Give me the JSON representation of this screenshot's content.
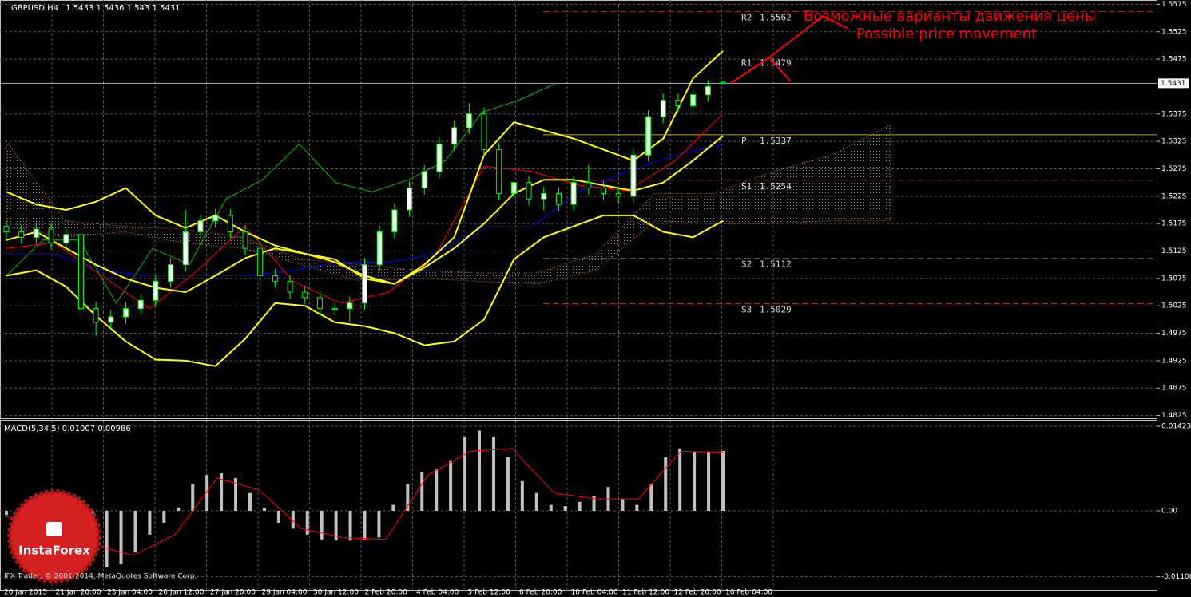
{
  "chart_data": [
    {
      "type": "candlestick",
      "symbol": "GBPUSD,H4",
      "categories": [
        "20 Jan 2015",
        "21 Jan 20:00",
        "23 Jan 04:00",
        "26 Jan 12:00",
        "27 Jan 20:00",
        "29 Jan 04:00",
        "30 Jan 12:00",
        "2 Feb 20:00",
        "4 Feb 04:00",
        "5 Feb 12:00",
        "6 Feb 20:00",
        "10 Feb 04:00",
        "11 Feb 12:00",
        "12 Feb 20:00",
        "16 Feb 04:00"
      ],
      "open": [
        1.517,
        1.516,
        1.515,
        1.5165,
        1.514,
        1.5155,
        1.502,
        1.4995,
        1.5005,
        1.502,
        1.5035,
        1.507,
        1.51,
        1.516,
        1.518,
        1.519,
        1.516,
        1.513,
        1.508,
        1.507,
        1.505,
        1.504,
        1.502,
        1.502,
        1.503,
        1.51,
        1.516,
        1.52,
        1.524,
        1.527,
        1.532,
        1.535,
        1.5375,
        1.531,
        1.523,
        1.525,
        1.522,
        1.523,
        1.521,
        1.525,
        1.524,
        1.523,
        1.5225,
        1.53,
        1.537,
        1.54,
        1.539,
        1.541,
        1.5433
      ],
      "high": [
        1.5182,
        1.5172,
        1.5177,
        1.5177,
        1.5167,
        1.5167,
        1.5032,
        1.5017,
        1.5032,
        1.5047,
        1.5082,
        1.5112,
        1.52,
        1.5192,
        1.5202,
        1.5202,
        1.5172,
        1.5142,
        1.5092,
        1.5082,
        1.5062,
        1.5052,
        1.5032,
        1.5042,
        1.5112,
        1.5172,
        1.5212,
        1.5252,
        1.5282,
        1.5332,
        1.5362,
        1.5395,
        1.5387,
        1.5322,
        1.5262,
        1.5262,
        1.5242,
        1.5242,
        1.5262,
        1.5282,
        1.5252,
        1.5242,
        1.5312,
        1.5382,
        1.5412,
        1.5412,
        1.5422,
        1.5437,
        1.5436
      ],
      "low": [
        1.5148,
        1.5138,
        1.5138,
        1.5128,
        1.5128,
        1.5008,
        1.497,
        1.4983,
        1.4993,
        1.5008,
        1.5023,
        1.5058,
        1.5088,
        1.5148,
        1.5168,
        1.5148,
        1.5118,
        1.505,
        1.5058,
        1.5038,
        1.5028,
        1.5008,
        1.5008,
        1.4995,
        1.5018,
        1.5088,
        1.5148,
        1.5188,
        1.5228,
        1.5258,
        1.5308,
        1.5338,
        1.5298,
        1.5218,
        1.5218,
        1.5208,
        1.52,
        1.5198,
        1.5198,
        1.5228,
        1.5218,
        1.5213,
        1.5213,
        1.5288,
        1.5358,
        1.5378,
        1.5378,
        1.5398,
        1.543
      ],
      "close": [
        1.516,
        1.515,
        1.5165,
        1.514,
        1.5155,
        1.502,
        1.4995,
        1.5005,
        1.502,
        1.5035,
        1.507,
        1.51,
        1.516,
        1.518,
        1.519,
        1.516,
        1.513,
        1.508,
        1.507,
        1.505,
        1.504,
        1.502,
        1.502,
        1.503,
        1.51,
        1.516,
        1.52,
        1.524,
        1.527,
        1.532,
        1.535,
        1.5375,
        1.531,
        1.523,
        1.525,
        1.522,
        1.523,
        1.521,
        1.525,
        1.524,
        1.523,
        1.5225,
        1.53,
        1.537,
        1.54,
        1.539,
        1.541,
        1.5425,
        1.5431
      ],
      "candle_color": "#00ff00",
      "bull_fill": "#ffffff",
      "bear_fill": "#000000",
      "bands": [
        {
          "color": "#ffff00",
          "values": [
            1.5233,
            1.521,
            1.52,
            1.5215,
            1.524,
            1.519,
            1.5167,
            1.519,
            1.516,
            1.5135,
            1.512,
            1.5105,
            1.508,
            1.5065,
            1.51,
            1.515,
            1.53,
            1.536,
            1.5345,
            1.533,
            1.531,
            1.529,
            1.533,
            1.544,
            1.549
          ]
        },
        {
          "color": "#ffff00",
          "values": [
            1.5145,
            1.516,
            1.513,
            1.51,
            1.5075,
            1.5058,
            1.505,
            1.508,
            1.5112,
            1.513,
            1.512,
            1.511,
            1.5075,
            1.5065,
            1.5095,
            1.513,
            1.5175,
            1.523,
            1.5255,
            1.5255,
            1.5245,
            1.5235,
            1.525,
            1.529,
            1.5335
          ]
        },
        {
          "color": "#ffff00",
          "values": [
            1.508,
            1.509,
            1.506,
            1.5007,
            1.496,
            1.4927,
            1.4925,
            1.4915,
            1.4965,
            1.503,
            1.5025,
            1.4995,
            1.4988,
            1.4975,
            1.4953,
            1.496,
            1.5,
            1.511,
            1.515,
            1.517,
            1.519,
            1.519,
            1.516,
            1.515,
            1.518
          ]
        }
      ],
      "tenkan": {
        "color": "#ff0000",
        "values": [
          1.513,
          1.514,
          1.508,
          1.502,
          1.509,
          1.517,
          1.507,
          1.503,
          1.505,
          1.512,
          1.528,
          1.527,
          1.5245,
          1.5235,
          1.529,
          1.5375
        ]
      },
      "kijun": {
        "color": "#0000ff",
        "values": [
          1.512,
          1.512,
          1.509,
          1.508,
          1.508,
          1.508,
          1.509,
          1.5105,
          1.5105,
          1.512,
          1.517,
          1.517,
          1.5235,
          1.527,
          1.53,
          1.532
        ]
      },
      "chikou": {
        "color": "#00c000",
        "values": [
          1.508,
          1.5145,
          1.5145,
          1.503,
          1.513,
          1.51,
          1.522,
          1.5255,
          1.532,
          1.525,
          1.5233,
          1.5255,
          1.529,
          1.5378,
          1.54,
          1.543
        ]
      },
      "cloud": {
        "color": "#c8743a",
        "span_a": [
          1.5325,
          1.518,
          1.517,
          1.5165,
          1.515,
          1.511,
          1.51,
          1.509,
          1.5085,
          1.5085,
          1.512,
          1.523,
          1.523,
          1.527,
          1.53,
          1.5355
        ],
        "span_b": [
          1.517,
          1.515,
          1.516,
          1.514,
          1.513,
          1.51,
          1.507,
          1.5075,
          1.507,
          1.5065,
          1.509,
          1.518,
          1.5175,
          1.5175,
          1.518,
          1.518
        ]
      },
      "pivots": [
        {
          "name": "R2",
          "value": 1.5562,
          "color": "#9b2a2a"
        },
        {
          "name": "R1",
          "value": 1.5479,
          "color": "#9b2a2a"
        },
        {
          "name": "P",
          "value": 1.5337,
          "color": "#b9a23a"
        },
        {
          "name": "S1",
          "value": 1.5254,
          "color": "#9b2a2a"
        },
        {
          "name": "S2",
          "value": 1.5112,
          "color": "#9b2a2a"
        },
        {
          "name": "S3",
          "value": 1.5029,
          "color": "#9b2a2a"
        }
      ],
      "annotations": [
        "Возможные варианты движения цены",
        "Possible price movement"
      ],
      "annotation_color": "#ff0000",
      "ylim": [
        1.482,
        1.558
      ],
      "yticks": [
        1.5575,
        1.5525,
        1.5475,
        1.5375,
        1.5325,
        1.5275,
        1.5225,
        1.5175,
        1.5125,
        1.5075,
        1.5025,
        1.4975,
        1.4925,
        1.4875,
        1.4825
      ],
      "grid": true
    },
    {
      "type": "macd",
      "title": "MACD(5,34,5)",
      "values": [
        -0.0007,
        -0.001,
        -0.0011,
        -0.001,
        -0.0013,
        -0.003,
        -0.0065,
        -0.0095,
        -0.009,
        -0.007,
        -0.004,
        -0.002,
        0.0005,
        0.0045,
        0.006,
        0.0063,
        0.0055,
        0.003,
        0.0005,
        -0.002,
        -0.003,
        -0.004,
        -0.0048,
        -0.005,
        -0.005,
        -0.0048,
        -0.0045,
        0.001,
        0.0045,
        0.0065,
        0.007,
        0.0085,
        0.0125,
        0.0135,
        0.0125,
        0.009,
        0.005,
        0.003,
        0.001,
        0.0008,
        0.0015,
        0.0025,
        0.004,
        0.002,
        0.001,
        0.0045,
        0.009,
        0.0105,
        0.01,
        0.01,
        0.01007
      ],
      "color": "#c0c0c0",
      "signal": {
        "color": "#ff0000",
        "values": [
          -0.001,
          -0.002,
          -0.0055,
          -0.0075,
          -0.004,
          0.0055,
          0.0035,
          -0.003,
          -0.0045,
          -0.0048,
          0.006,
          0.01,
          0.0105,
          0.003,
          0.002,
          0.002,
          0.01,
          0.00986
        ]
      },
      "ylim": [
        -0.01342,
        0.01517
      ],
      "yticks": [
        0.01423,
        {
          "value": 0,
          "label": "0.00"
        },
        -0.01108
      ],
      "grid": true
    }
  ],
  "footer": "IFX Trader, © 2001-2014, MetaQuotes Software Corp.",
  "logo": "InstaForex"
}
